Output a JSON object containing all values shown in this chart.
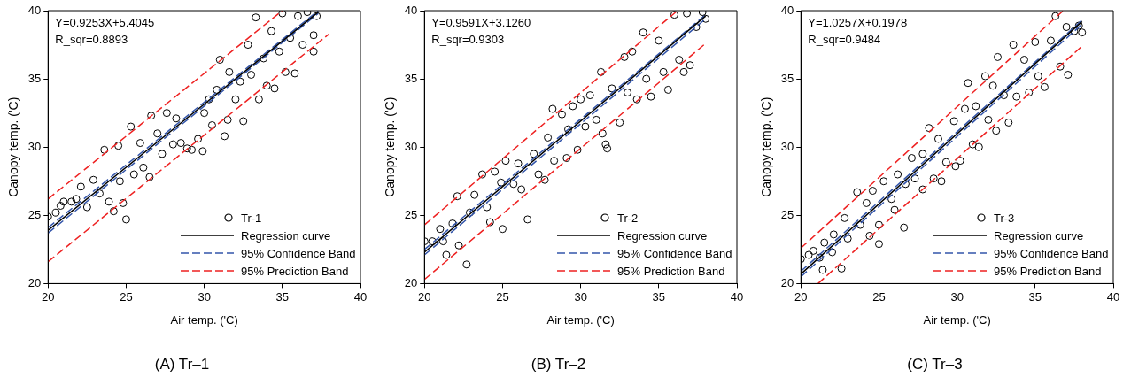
{
  "chart_data": [
    {
      "type": "scatter",
      "title": "(A) Tr–1",
      "xlabel": "Air temp. ('C)",
      "ylabel": "Canopy temp. ('C)",
      "xlim": [
        20,
        40
      ],
      "ylim": [
        20,
        40
      ],
      "xticks": [
        20,
        25,
        30,
        35,
        40
      ],
      "yticks": [
        20,
        25,
        30,
        35,
        40
      ],
      "legend": "bottom right",
      "marker": "circle",
      "annotations": [
        "Y=0.9253X+5.4045",
        "R_sqr=0.8893"
      ],
      "series": [
        {
          "name": "Tr-1",
          "type": "scatter",
          "color": "#000000",
          "x": [
            20,
            20.5,
            21,
            20.8,
            21.5,
            21.8,
            22.1,
            22.5,
            22.9,
            23.3,
            23.6,
            23.9,
            24.2,
            24.5,
            24.8,
            25.0,
            24.6,
            25.3,
            25.5,
            25.9,
            26.1,
            26.5,
            26.6,
            27,
            27.3,
            27.6,
            28,
            28.2,
            28.5,
            28.9,
            29.2,
            29.6,
            29.9,
            30,
            30.3,
            30.5,
            30.8,
            31,
            31.3,
            31.5,
            31.6,
            32,
            32.3,
            32.5,
            32.8,
            33,
            33.3,
            33.5,
            33.8,
            34,
            34.3,
            34.5,
            34.8,
            35,
            35.2,
            35.5,
            35.8,
            36,
            36.3,
            36.6,
            37,
            37.2,
            37
          ],
          "values": [
            24.9,
            25.2,
            26,
            25.7,
            26,
            26.2,
            27.1,
            25.6,
            27.6,
            26.6,
            29.8,
            26,
            25.3,
            30.1,
            25.9,
            24.7,
            27.5,
            31.5,
            28,
            30.3,
            28.5,
            27.8,
            32.3,
            31,
            29.5,
            32.5,
            30.2,
            32.1,
            30.3,
            29.9,
            29.8,
            30.6,
            29.7,
            32.5,
            33.5,
            31.6,
            34.2,
            36.4,
            30.8,
            32,
            35.5,
            33.5,
            34.8,
            31.9,
            37.5,
            35.3,
            39.5,
            33.5,
            36.5,
            34.5,
            38.5,
            34.3,
            37,
            39.8,
            35.5,
            38,
            35.4,
            39.6,
            37.5,
            39.9,
            37,
            39.6,
            38.2
          ]
        },
        {
          "name": "Regression curve",
          "type": "line",
          "color": "#000000",
          "line_style": "solid",
          "marker": "none",
          "x": [
            20,
            37.3
          ],
          "values": [
            23.9,
            39.9
          ]
        },
        {
          "name": "95% Confidence Band",
          "type": "line",
          "color": "#3355aa",
          "line_style": "dashed",
          "marker": "none",
          "x": [
            20,
            37.3
          ],
          "values": [
            24.1,
            40
          ]
        },
        {
          "type": "line",
          "color": "#3355aa",
          "line_style": "dashed",
          "marker": "none",
          "x": [
            20,
            37.3
          ],
          "values": [
            23.7,
            39.8
          ]
        },
        {
          "name": "95% Prediction Band",
          "type": "line",
          "color": "#ee2222",
          "line_style": "dashed",
          "marker": "none",
          "x": [
            20,
            35
          ],
          "values": [
            26.2,
            40
          ]
        },
        {
          "type": "line",
          "color": "#ee2222",
          "line_style": "dashed",
          "marker": "none",
          "x": [
            20,
            38
          ],
          "values": [
            21.6,
            38.3
          ]
        }
      ]
    },
    {
      "type": "scatter",
      "title": "(B) Tr–2",
      "xlabel": "Air temp. ('C)",
      "ylabel": "Canopy temp. ('C)",
      "xlim": [
        20,
        40
      ],
      "ylim": [
        20,
        40
      ],
      "xticks": [
        20,
        25,
        30,
        35,
        40
      ],
      "yticks": [
        20,
        25,
        30,
        35,
        40
      ],
      "legend": "bottom right",
      "marker": "circle",
      "annotations": [
        "Y=0.9591X+3.1260",
        "R_sqr=0.9303"
      ],
      "series": [
        {
          "name": "Tr-2",
          "type": "scatter",
          "color": "#000000",
          "x": [
            20,
            20.5,
            21,
            21.2,
            21.4,
            21.8,
            22.1,
            22.2,
            22.7,
            22.9,
            23.2,
            23.7,
            24,
            24.2,
            24.5,
            24.9,
            25,
            25.2,
            25.7,
            26,
            26.2,
            26.6,
            27,
            27.3,
            27.7,
            27.9,
            28.2,
            28.3,
            28.8,
            29.1,
            29.2,
            29.5,
            29.8,
            30,
            30.3,
            30.6,
            31,
            31.3,
            31.4,
            31.6,
            31.7,
            32,
            32.5,
            32.8,
            33,
            33.3,
            33.6,
            34,
            34.2,
            34.5,
            35,
            35.3,
            35.6,
            36,
            36.3,
            36.6,
            36.8,
            37,
            37.4,
            37.8,
            38
          ],
          "values": [
            23.1,
            23.1,
            24,
            23.1,
            22.1,
            24.4,
            26.4,
            22.8,
            21.4,
            25.2,
            26.5,
            28,
            25.6,
            24.5,
            28.2,
            27.4,
            24,
            29,
            27.3,
            28.8,
            26.9,
            24.7,
            29.5,
            28,
            27.6,
            30.7,
            32.8,
            29,
            32.4,
            29.2,
            31.3,
            33,
            29.8,
            33.5,
            31.5,
            33.8,
            32,
            35.5,
            31,
            30.2,
            29.9,
            34.3,
            31.8,
            36.6,
            34,
            37,
            33.5,
            38.4,
            35,
            33.7,
            37.8,
            35.5,
            34.2,
            39.7,
            36.4,
            35.5,
            39.8,
            36,
            38.8,
            39.9,
            39.4
          ]
        },
        {
          "name": "Regression curve",
          "type": "line",
          "color": "#000000",
          "line_style": "solid",
          "marker": "none",
          "x": [
            20,
            38
          ],
          "values": [
            22.3,
            39.6
          ]
        },
        {
          "name": "95% Confidence Band",
          "type": "line",
          "color": "#3355aa",
          "line_style": "dashed",
          "marker": "none",
          "x": [
            20,
            38
          ],
          "values": [
            22.5,
            39.7
          ]
        },
        {
          "type": "line",
          "color": "#3355aa",
          "line_style": "dashed",
          "marker": "none",
          "x": [
            20,
            38
          ],
          "values": [
            22.1,
            39.4
          ]
        },
        {
          "name": "95% Prediction Band",
          "type": "line",
          "color": "#ee2222",
          "line_style": "dashed",
          "marker": "none",
          "x": [
            20,
            36.2
          ],
          "values": [
            24.3,
            40
          ]
        },
        {
          "type": "line",
          "color": "#ee2222",
          "line_style": "dashed",
          "marker": "none",
          "x": [
            20,
            38
          ],
          "values": [
            20.3,
            37.6
          ]
        }
      ]
    },
    {
      "type": "scatter",
      "title": "(C) Tr–3",
      "xlabel": "Air temp. ('C)",
      "ylabel": "Canopy temp. ('C)",
      "xlim": [
        20,
        40
      ],
      "ylim": [
        20,
        40
      ],
      "xticks": [
        20,
        25,
        30,
        35,
        40
      ],
      "yticks": [
        20,
        25,
        30,
        35,
        40
      ],
      "legend": "bottom right",
      "marker": "circle",
      "annotations": [
        "Y=1.0257X+0.1978",
        "R_sqr=0.9484"
      ],
      "series": [
        {
          "name": "Tr-3",
          "type": "scatter",
          "color": "#000000",
          "x": [
            20,
            20.5,
            20.8,
            21.2,
            21.4,
            21.5,
            22,
            22.1,
            22.6,
            22.8,
            23,
            23.6,
            23.8,
            24.2,
            24.4,
            24.6,
            25,
            25,
            25.3,
            25.8,
            26,
            26.2,
            26.6,
            26.7,
            27.1,
            27.3,
            27.8,
            27.8,
            28.2,
            28.5,
            28.8,
            29,
            29.3,
            29.8,
            29.9,
            30.2,
            30.5,
            30.7,
            31,
            31.2,
            31.4,
            31.8,
            32,
            32.3,
            32.5,
            32.6,
            33,
            33.3,
            33.6,
            33.8,
            34.3,
            34.6,
            35,
            35.2,
            35.6,
            36,
            36.3,
            36.6,
            37,
            37.1,
            37.5,
            37.8,
            38
          ],
          "values": [
            21.8,
            22.1,
            22.4,
            21.9,
            21,
            23,
            22.3,
            23.6,
            21.1,
            24.8,
            23.3,
            26.7,
            24.3,
            25.9,
            23.5,
            26.8,
            22.9,
            24.3,
            27.5,
            26.2,
            25.4,
            28,
            24.1,
            27.3,
            29.2,
            27.7,
            29.5,
            26.9,
            31.4,
            27.7,
            30.6,
            27.5,
            28.9,
            31.9,
            28.6,
            29,
            32.8,
            34.7,
            30.2,
            33,
            30,
            35.2,
            32,
            34.5,
            31.2,
            36.6,
            33.8,
            31.8,
            37.5,
            33.7,
            36.4,
            34,
            37.7,
            35.2,
            34.4,
            37.8,
            39.6,
            35.9,
            38.8,
            35.3,
            38.5,
            38.9,
            38.4
          ]
        },
        {
          "name": "Regression curve",
          "type": "line",
          "color": "#000000",
          "line_style": "solid",
          "marker": "none",
          "x": [
            20,
            38
          ],
          "values": [
            20.7,
            39.2
          ]
        },
        {
          "name": "95% Confidence Band",
          "type": "line",
          "color": "#3355aa",
          "line_style": "dashed",
          "marker": "none",
          "x": [
            20,
            38
          ],
          "values": [
            20.9,
            39.3
          ]
        },
        {
          "type": "line",
          "color": "#3355aa",
          "line_style": "dashed",
          "marker": "none",
          "x": [
            20,
            38
          ],
          "values": [
            20.5,
            39
          ]
        },
        {
          "name": "95% Prediction Band",
          "type": "line",
          "color": "#ee2222",
          "line_style": "dashed",
          "marker": "none",
          "x": [
            20,
            36.8
          ],
          "values": [
            22.6,
            40
          ]
        },
        {
          "type": "line",
          "color": "#ee2222",
          "line_style": "dashed",
          "marker": "none",
          "x": [
            21.1,
            38
          ],
          "values": [
            20,
            37.4
          ]
        }
      ]
    }
  ]
}
